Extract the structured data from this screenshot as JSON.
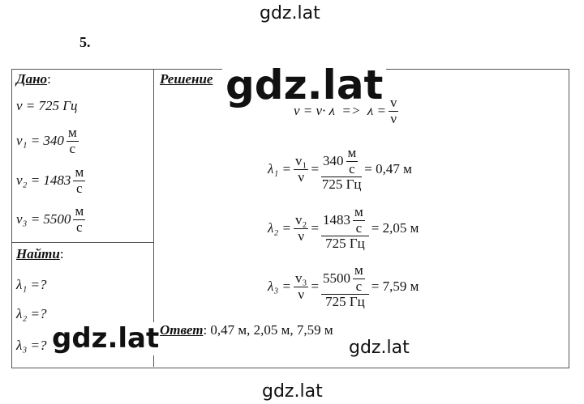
{
  "watermarks": {
    "top": "gdz.lat",
    "center": "gdz.lat",
    "left": "gdz.lat",
    "right": "gdz.lat",
    "bottom": "gdz.lat"
  },
  "problem_number": "5.",
  "given": {
    "label": "Дано",
    "suffix": ":",
    "items": [
      {
        "text": "ν = 725 Гц"
      },
      {
        "text": "v₁ = 340",
        "num": "м",
        "den": "с"
      },
      {
        "text": "v₂ = 1483",
        "num": "м",
        "den": "с"
      },
      {
        "text": "v₃ = 5500",
        "num": "м",
        "den": "с"
      }
    ]
  },
  "find": {
    "label": "Найти",
    "suffix": ":",
    "items": [
      "λ₁ =?",
      "λ₂ =?",
      "λ₃ =?"
    ]
  },
  "solution": {
    "label": "Решение",
    "relation": {
      "text": "v = ν· λ  =>  λ =",
      "num": "v",
      "den": "ν"
    },
    "rows": [
      {
        "lhs": "λ₁ =",
        "num": "v₁",
        "den": "ν",
        "eq": "=",
        "value": "340",
        "unit_num": "м",
        "unit_den": "с",
        "value_den": "725 Гц",
        "result": "= 0,47 м"
      },
      {
        "lhs": "λ₂ =",
        "num": "v₂",
        "den": "ν",
        "eq": "=",
        "value": "1483",
        "unit_num": "м",
        "unit_den": "с",
        "value_den": "725 Гц",
        "result": "= 2,05 м"
      },
      {
        "lhs": "λ₃ =",
        "num": "v₃",
        "den": "ν",
        "eq": "=",
        "value": "5500",
        "unit_num": "м",
        "unit_den": "с",
        "value_den": "725 Гц",
        "result": "= 7,59 м"
      }
    ]
  },
  "answer": {
    "label": "Ответ",
    "text": ": 0,47 м, 2,05 м, 7,59 м"
  }
}
